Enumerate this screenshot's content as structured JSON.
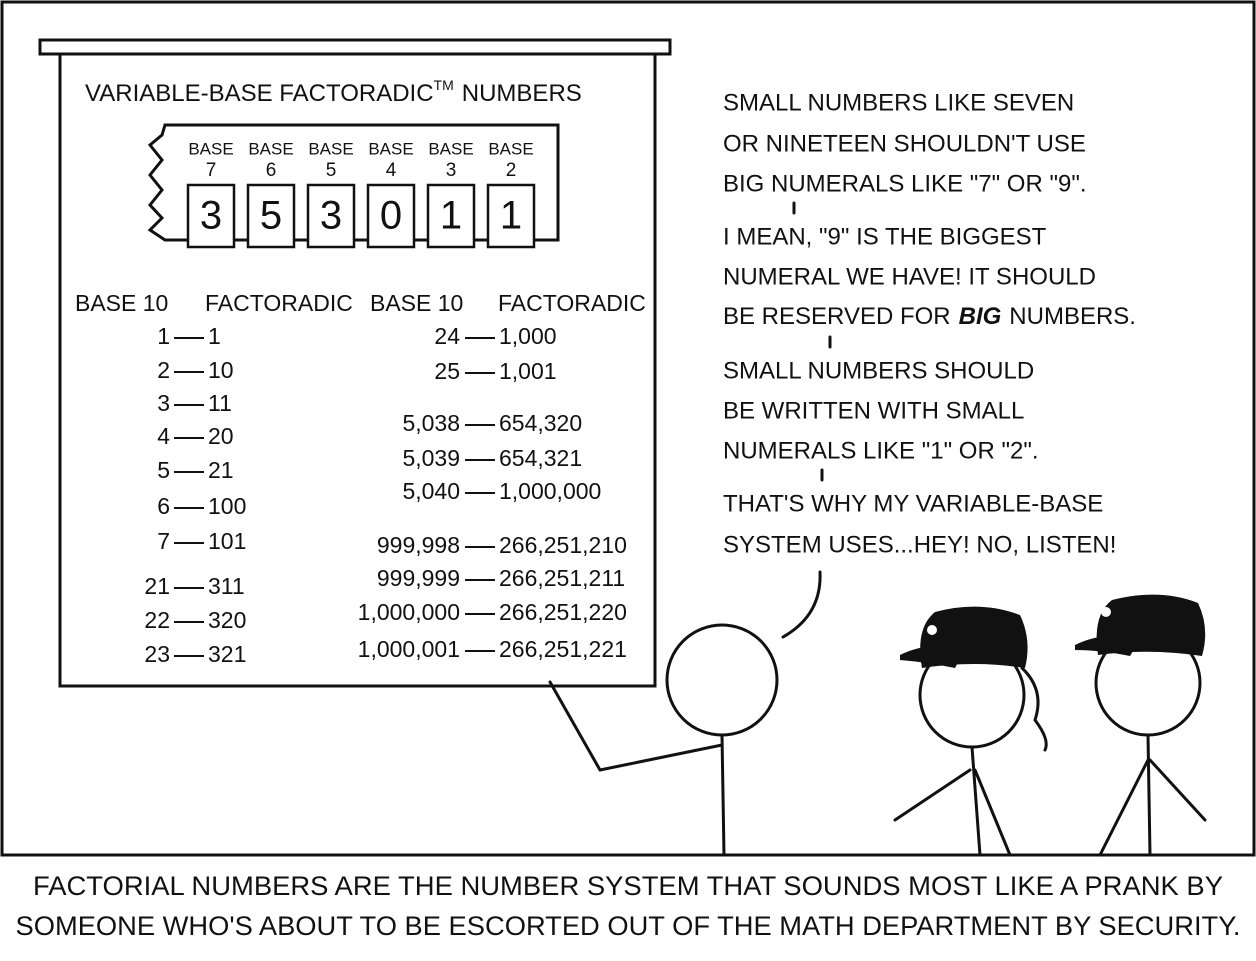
{
  "board": {
    "title": "VARIABLE-BASE FACTORADIC",
    "trademark": "TM",
    "title_end": "NUMBERS",
    "digits": [
      {
        "label": "BASE",
        "base": "7",
        "digit": "3"
      },
      {
        "label": "BASE",
        "base": "6",
        "digit": "5"
      },
      {
        "label": "BASE",
        "base": "5",
        "digit": "3"
      },
      {
        "label": "BASE",
        "base": "4",
        "digit": "0"
      },
      {
        "label": "BASE",
        "base": "3",
        "digit": "1"
      },
      {
        "label": "BASE",
        "base": "2",
        "digit": "1"
      }
    ],
    "headers": [
      "BASE 10",
      "FACTORADIC",
      "BASE 10",
      "FACTORADIC"
    ],
    "left_rows": [
      [
        "1",
        "1"
      ],
      [
        "2",
        "10"
      ],
      [
        "3",
        "11"
      ],
      [
        "4",
        "20"
      ],
      [
        "5",
        "21"
      ],
      [
        "6",
        "100"
      ],
      [
        "7",
        "101"
      ],
      [
        "21",
        "311"
      ],
      [
        "22",
        "320"
      ],
      [
        "23",
        "321"
      ]
    ],
    "right_rows": [
      [
        "24",
        "1,000"
      ],
      [
        "25",
        "1,001"
      ],
      [
        "5,038",
        "654,320"
      ],
      [
        "5,039",
        "654,321"
      ],
      [
        "5,040",
        "1,000,000"
      ],
      [
        "999,998",
        "266,251,210"
      ],
      [
        "999,999",
        "266,251,211"
      ],
      [
        "1,000,000",
        "266,251,220"
      ],
      [
        "1,000,001",
        "266,251,221"
      ]
    ]
  },
  "speech": {
    "p1": [
      "SMALL NUMBERS LIKE SEVEN",
      "OR NINETEEN SHOULDN'T USE",
      "BIG NUMERALS LIKE \"7\" OR \"9\"."
    ],
    "p2": [
      "I MEAN, \"9\" IS THE BIGGEST",
      "NUMERAL WE HAVE! IT SHOULD"
    ],
    "p2_last": [
      "BE RESERVED FOR",
      "BIG",
      "NUMBERS."
    ],
    "p3": [
      "SMALL NUMBERS SHOULD",
      "BE WRITTEN WITH SMALL",
      "NUMERALS LIKE \"1\" OR \"2\"."
    ],
    "p4": [
      "THAT'S WHY MY VARIABLE-BASE",
      "SYSTEM USES...HEY! NO, LISTEN!"
    ]
  },
  "caption": [
    "FACTORIAL NUMBERS ARE THE NUMBER SYSTEM THAT SOUNDS MOST LIKE A PRANK BY",
    "SOMEONE WHO'S ABOUT TO BE ESCORTED OUT OF THE MATH DEPARTMENT BY SECURITY."
  ]
}
